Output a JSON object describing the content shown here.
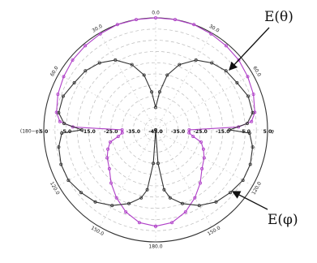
{
  "chart_data": {
    "type": "polar",
    "grid": true,
    "radial_scale": {
      "min": -45,
      "max": 5,
      "major_ring_labels": [
        "5.0",
        "-5.0",
        "-15.0",
        "-25.0",
        "-35.0",
        "-45.0"
      ]
    },
    "angle_labels": [
      {
        "angle": 0,
        "text": "0.0"
      },
      {
        "angle": 30,
        "text": "30.0"
      },
      {
        "angle": 60,
        "text": "60.0"
      },
      {
        "angle": 90,
        "text": "φ"
      },
      {
        "angle": 120,
        "text": "120.0"
      },
      {
        "angle": 150,
        "text": "150.0"
      },
      {
        "angle": 180,
        "text": "180.0"
      },
      {
        "angle": -150,
        "text": "150.0"
      },
      {
        "angle": -120,
        "text": "120.0"
      },
      {
        "angle": -90,
        "text": "(180−φ)"
      },
      {
        "angle": -60,
        "text": "60.0"
      },
      {
        "angle": -30,
        "text": "30.0"
      }
    ],
    "series": [
      {
        "name": "E(θ)",
        "color": "#b040c8",
        "points": [
          {
            "angle": -180,
            "value": -2
          },
          {
            "angle": -170,
            "value": -3
          },
          {
            "angle": -160,
            "value": -6
          },
          {
            "angle": -150,
            "value": -10
          },
          {
            "angle": -140,
            "value": -14
          },
          {
            "angle": -130,
            "value": -18
          },
          {
            "angle": -120,
            "value": -20
          },
          {
            "angle": -112,
            "value": -22
          },
          {
            "angle": -105,
            "value": -24
          },
          {
            "angle": -100,
            "value": -28
          },
          {
            "angle": -95,
            "value": -30
          },
          {
            "angle": -90,
            "value": -30
          },
          {
            "angle": -88,
            "value": -8
          },
          {
            "angle": -85,
            "value": -2
          },
          {
            "angle": -80,
            "value": 0
          },
          {
            "angle": -70,
            "value": 1.5
          },
          {
            "angle": -60,
            "value": 2.5
          },
          {
            "angle": -50,
            "value": 3.5
          },
          {
            "angle": -40,
            "value": 4
          },
          {
            "angle": -30,
            "value": 4.5
          },
          {
            "angle": -20,
            "value": 5
          },
          {
            "angle": -10,
            "value": 5
          },
          {
            "angle": 0,
            "value": 5
          },
          {
            "angle": 10,
            "value": 5
          },
          {
            "angle": 20,
            "value": 5
          },
          {
            "angle": 30,
            "value": 4.5
          },
          {
            "angle": 40,
            "value": 4
          },
          {
            "angle": 50,
            "value": 3.5
          },
          {
            "angle": 60,
            "value": 2.5
          },
          {
            "angle": 70,
            "value": 1.5
          },
          {
            "angle": 80,
            "value": 0
          },
          {
            "angle": 85,
            "value": -2
          },
          {
            "angle": 88,
            "value": -8
          },
          {
            "angle": 90,
            "value": -30
          },
          {
            "angle": 95,
            "value": -30
          },
          {
            "angle": 100,
            "value": -28
          },
          {
            "angle": 105,
            "value": -24
          },
          {
            "angle": 112,
            "value": -22
          },
          {
            "angle": 120,
            "value": -20
          },
          {
            "angle": 130,
            "value": -18
          },
          {
            "angle": 140,
            "value": -14
          },
          {
            "angle": 150,
            "value": -10
          },
          {
            "angle": 160,
            "value": -6
          },
          {
            "angle": 170,
            "value": -3
          },
          {
            "angle": 180,
            "value": -2
          }
        ]
      },
      {
        "name": "E(φ)",
        "color": "#333333",
        "points": [
          {
            "angle": -180,
            "value": -45
          },
          {
            "angle": -176,
            "value": -30
          },
          {
            "angle": -172,
            "value": -18
          },
          {
            "angle": -168,
            "value": -14
          },
          {
            "angle": -160,
            "value": -10
          },
          {
            "angle": -150,
            "value": -6
          },
          {
            "angle": -140,
            "value": -3
          },
          {
            "angle": -130,
            "value": -1.5
          },
          {
            "angle": -120,
            "value": 0
          },
          {
            "angle": -110,
            "value": 0
          },
          {
            "angle": -100,
            "value": -1
          },
          {
            "angle": -92,
            "value": -3
          },
          {
            "angle": -90,
            "value": -12
          },
          {
            "angle": -86,
            "value": -4
          },
          {
            "angle": -80,
            "value": -1
          },
          {
            "angle": -70,
            "value": -1
          },
          {
            "angle": -60,
            "value": -3
          },
          {
            "angle": -50,
            "value": -4
          },
          {
            "angle": -40,
            "value": -6
          },
          {
            "angle": -30,
            "value": -9
          },
          {
            "angle": -20,
            "value": -14
          },
          {
            "angle": -12,
            "value": -20
          },
          {
            "angle": -6,
            "value": -28
          },
          {
            "angle": 0,
            "value": -35
          },
          {
            "angle": 6,
            "value": -28
          },
          {
            "angle": 12,
            "value": -20
          },
          {
            "angle": 20,
            "value": -14
          },
          {
            "angle": 30,
            "value": -9
          },
          {
            "angle": 40,
            "value": -6
          },
          {
            "angle": 50,
            "value": -4
          },
          {
            "angle": 60,
            "value": -3
          },
          {
            "angle": 70,
            "value": -1
          },
          {
            "angle": 80,
            "value": -1
          },
          {
            "angle": 86,
            "value": -4
          },
          {
            "angle": 90,
            "value": -12
          },
          {
            "angle": 92,
            "value": -3
          },
          {
            "angle": 100,
            "value": -1
          },
          {
            "angle": 110,
            "value": 0
          },
          {
            "angle": 120,
            "value": 0
          },
          {
            "angle": 130,
            "value": -1.5
          },
          {
            "angle": 140,
            "value": -3
          },
          {
            "angle": 150,
            "value": -6
          },
          {
            "angle": 160,
            "value": -10
          },
          {
            "angle": 168,
            "value": -14
          },
          {
            "angle": 172,
            "value": -18
          },
          {
            "angle": 176,
            "value": -30
          },
          {
            "angle": 180,
            "value": -45
          }
        ]
      }
    ],
    "annotations": [
      {
        "text": "E(θ)",
        "points_to_series": "E(θ)"
      },
      {
        "text": "E(φ)",
        "points_to_series": "E(φ)"
      }
    ]
  }
}
